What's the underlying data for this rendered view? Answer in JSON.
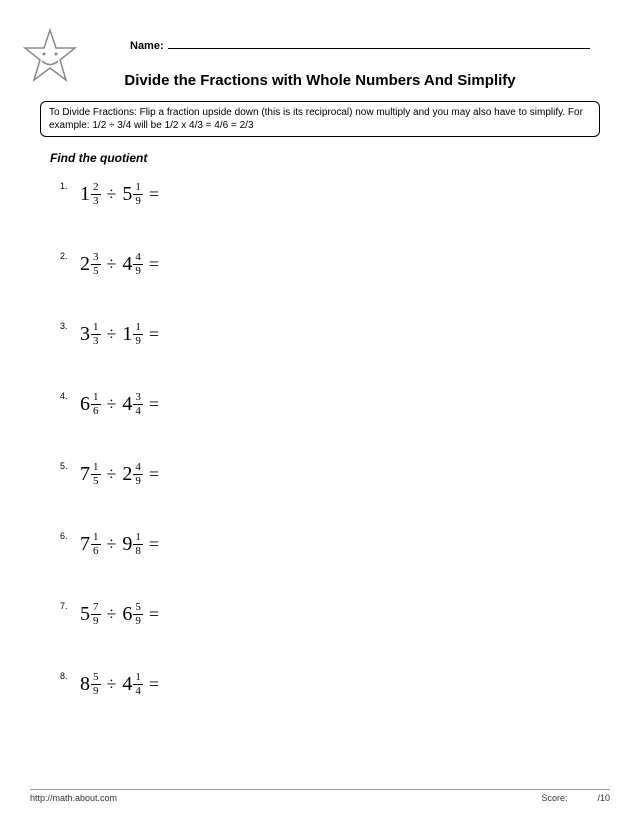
{
  "header": {
    "name_label": "Name:"
  },
  "title": "Divide the Fractions with Whole Numbers And Simplify",
  "instructions": "To Divide Fractions:  Flip a fraction upside down (this is its reciprocal) now multiply and you may also have to simplify. For example: 1/2 ÷ 3/4 will be 1/2 x 4/3 = 4/6 = 2/3",
  "subtitle": "Find the quotient",
  "problems": [
    {
      "n": "1.",
      "a_whole": "1",
      "a_num": "2",
      "a_den": "3",
      "b_whole": "5",
      "b_num": "1",
      "b_den": "9"
    },
    {
      "n": "2.",
      "a_whole": "2",
      "a_num": "3",
      "a_den": "5",
      "b_whole": "4",
      "b_num": "4",
      "b_den": "9"
    },
    {
      "n": "3.",
      "a_whole": "3",
      "a_num": "1",
      "a_den": "3",
      "b_whole": "1",
      "b_num": "1",
      "b_den": "9"
    },
    {
      "n": "4.",
      "a_whole": "6",
      "a_num": "1",
      "a_den": "6",
      "b_whole": "4",
      "b_num": "3",
      "b_den": "4"
    },
    {
      "n": "5.",
      "a_whole": "7",
      "a_num": "1",
      "a_den": "5",
      "b_whole": "2",
      "b_num": "4",
      "b_den": "9"
    },
    {
      "n": "6.",
      "a_whole": "7",
      "a_num": "1",
      "a_den": "6",
      "b_whole": "9",
      "b_num": "1",
      "b_den": "8"
    },
    {
      "n": "7.",
      "a_whole": "5",
      "a_num": "7",
      "a_den": "9",
      "b_whole": "6",
      "b_num": "5",
      "b_den": "9"
    },
    {
      "n": "8.",
      "a_whole": "8",
      "a_num": "5",
      "a_den": "9",
      "b_whole": "4",
      "b_num": "1",
      "b_den": "4"
    }
  ],
  "operator": "÷",
  "equals": "=",
  "footer": {
    "left": "http://math.about.com",
    "mid": "Score:",
    "right": "/10"
  },
  "colors": {
    "text": "#000000",
    "background": "#ffffff",
    "border": "#000000"
  }
}
